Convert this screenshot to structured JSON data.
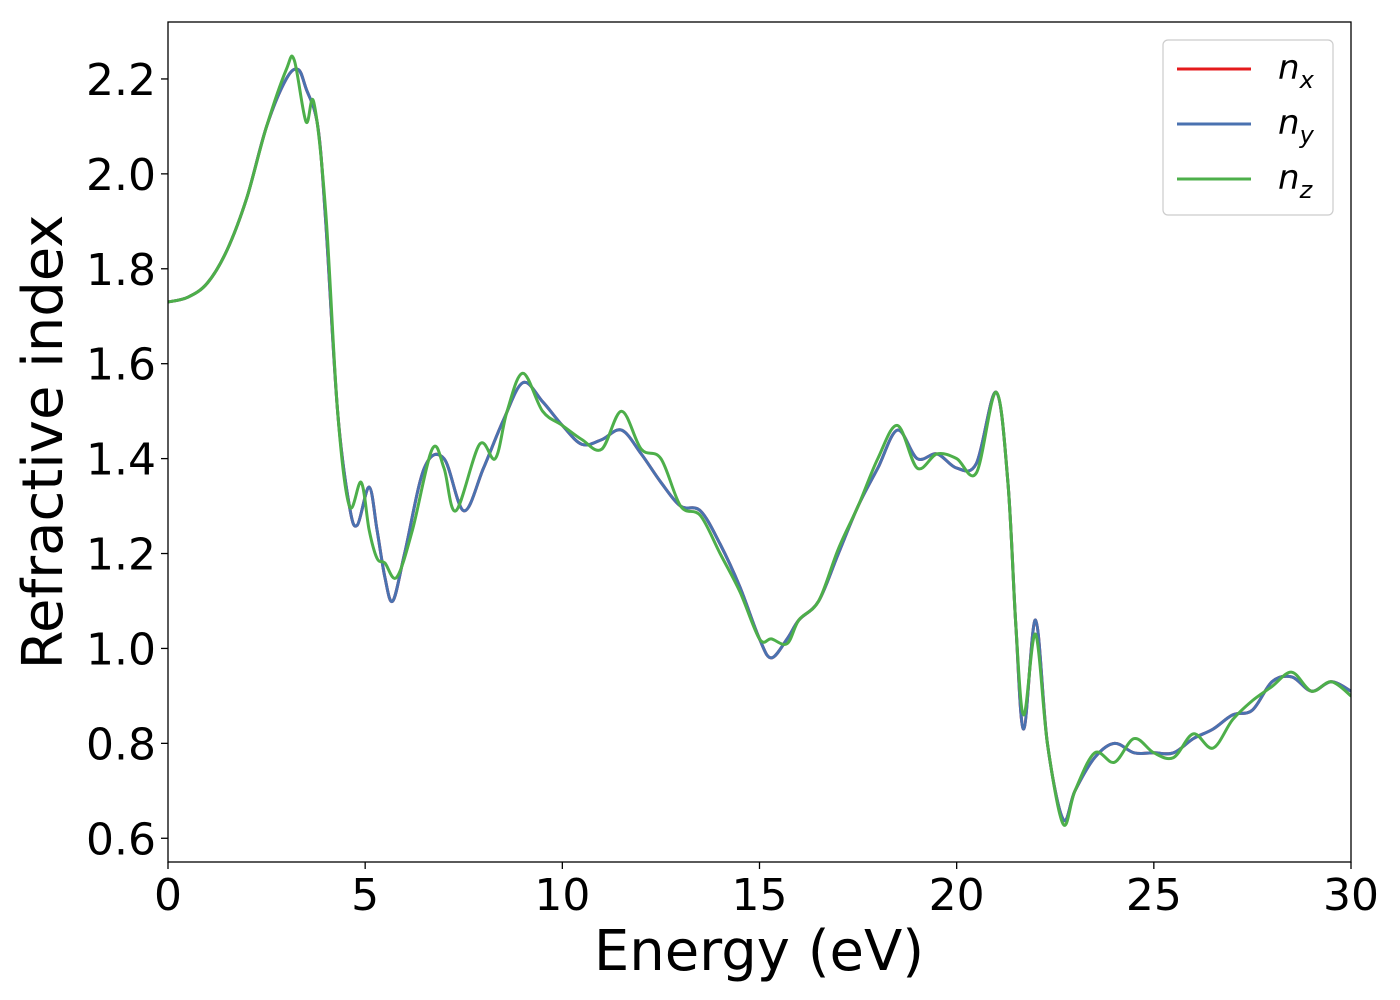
{
  "chart_data": {
    "type": "line",
    "xlabel": "Energy (eV)",
    "ylabel": "Refractive index",
    "xlim": [
      0,
      30
    ],
    "ylim": [
      0.55,
      2.32
    ],
    "xticks": [
      0,
      5,
      10,
      15,
      20,
      25,
      30
    ],
    "xtick_labels": [
      "0",
      "5",
      "10",
      "15",
      "20",
      "25",
      "30"
    ],
    "yticks": [
      0.6,
      0.8,
      1.0,
      1.2,
      1.4,
      1.6,
      1.8,
      2.0,
      2.2
    ],
    "ytick_labels": [
      "0.6",
      "0.8",
      "1.0",
      "1.2",
      "1.4",
      "1.6",
      "1.8",
      "2.0",
      "2.2"
    ],
    "grid": false,
    "legend_position": "top-right",
    "series": [
      {
        "name": "n",
        "subscript": "x",
        "color": "#e41a1c",
        "x": [
          0,
          0.5,
          1,
          1.5,
          2,
          2.5,
          3,
          3.3,
          3.5,
          3.8,
          4.0,
          4.3,
          4.6,
          4.8,
          5.1,
          5.3,
          5.5,
          5.7,
          6.0,
          6.5,
          7.0,
          7.5,
          8.0,
          8.5,
          9.0,
          9.5,
          10.0,
          10.5,
          11.0,
          11.5,
          12.0,
          12.5,
          13.0,
          13.5,
          14.0,
          14.5,
          15.0,
          15.3,
          15.7,
          16.0,
          16.5,
          17.0,
          17.5,
          18.0,
          18.5,
          19.0,
          19.5,
          20.0,
          20.5,
          21.0,
          21.3,
          21.5,
          21.7,
          22.0,
          22.3,
          22.7,
          23.0,
          23.5,
          24.0,
          24.5,
          25.0,
          25.5,
          26.0,
          26.5,
          27.0,
          27.5,
          28.0,
          28.5,
          29.0,
          29.5,
          30.0
        ],
        "y": [
          1.73,
          1.74,
          1.77,
          1.84,
          1.95,
          2.1,
          2.2,
          2.22,
          2.18,
          2.1,
          1.9,
          1.5,
          1.3,
          1.26,
          1.34,
          1.25,
          1.15,
          1.1,
          1.2,
          1.38,
          1.4,
          1.29,
          1.38,
          1.48,
          1.56,
          1.52,
          1.47,
          1.43,
          1.44,
          1.46,
          1.41,
          1.35,
          1.3,
          1.29,
          1.22,
          1.13,
          1.02,
          0.98,
          1.02,
          1.06,
          1.1,
          1.2,
          1.3,
          1.38,
          1.46,
          1.4,
          1.41,
          1.38,
          1.39,
          1.54,
          1.35,
          1.05,
          0.83,
          1.06,
          0.8,
          0.64,
          0.7,
          0.77,
          0.8,
          0.78,
          0.78,
          0.78,
          0.81,
          0.83,
          0.86,
          0.87,
          0.93,
          0.94,
          0.91,
          0.93,
          0.91
        ]
      },
      {
        "name": "n",
        "subscript": "y",
        "color": "#4a72b0",
        "x": [
          0,
          0.5,
          1,
          1.5,
          2,
          2.5,
          3,
          3.3,
          3.5,
          3.8,
          4.0,
          4.3,
          4.6,
          4.8,
          5.1,
          5.3,
          5.5,
          5.7,
          6.0,
          6.5,
          7.0,
          7.5,
          8.0,
          8.5,
          9.0,
          9.5,
          10.0,
          10.5,
          11.0,
          11.5,
          12.0,
          12.5,
          13.0,
          13.5,
          14.0,
          14.5,
          15.0,
          15.3,
          15.7,
          16.0,
          16.5,
          17.0,
          17.5,
          18.0,
          18.5,
          19.0,
          19.5,
          20.0,
          20.5,
          21.0,
          21.3,
          21.5,
          21.7,
          22.0,
          22.3,
          22.7,
          23.0,
          23.5,
          24.0,
          24.5,
          25.0,
          25.5,
          26.0,
          26.5,
          27.0,
          27.5,
          28.0,
          28.5,
          29.0,
          29.5,
          30.0
        ],
        "y": [
          1.73,
          1.74,
          1.77,
          1.84,
          1.95,
          2.1,
          2.2,
          2.22,
          2.18,
          2.1,
          1.9,
          1.5,
          1.3,
          1.26,
          1.34,
          1.25,
          1.15,
          1.1,
          1.2,
          1.38,
          1.4,
          1.29,
          1.38,
          1.48,
          1.56,
          1.52,
          1.47,
          1.43,
          1.44,
          1.46,
          1.41,
          1.35,
          1.3,
          1.29,
          1.22,
          1.13,
          1.02,
          0.98,
          1.02,
          1.06,
          1.1,
          1.2,
          1.3,
          1.38,
          1.46,
          1.4,
          1.41,
          1.38,
          1.39,
          1.54,
          1.35,
          1.05,
          0.83,
          1.06,
          0.8,
          0.64,
          0.7,
          0.77,
          0.8,
          0.78,
          0.78,
          0.78,
          0.81,
          0.83,
          0.86,
          0.87,
          0.93,
          0.94,
          0.91,
          0.93,
          0.91
        ]
      },
      {
        "name": "n",
        "subscript": "z",
        "color": "#4daf4a",
        "x": [
          0,
          0.5,
          1,
          1.5,
          2,
          2.5,
          3,
          3.2,
          3.5,
          3.7,
          4.0,
          4.3,
          4.6,
          4.9,
          5.1,
          5.3,
          5.5,
          5.8,
          6.2,
          6.7,
          7.0,
          7.3,
          7.9,
          8.3,
          8.6,
          9.0,
          9.5,
          10.0,
          10.5,
          11.0,
          11.5,
          12.0,
          12.5,
          13.0,
          13.5,
          14.0,
          14.5,
          15.0,
          15.3,
          15.7,
          16.0,
          16.5,
          17.0,
          17.5,
          18.0,
          18.5,
          19.0,
          19.5,
          20.0,
          20.5,
          21.0,
          21.3,
          21.5,
          21.7,
          22.0,
          22.3,
          22.7,
          23.0,
          23.5,
          24.0,
          24.5,
          25.0,
          25.5,
          26.0,
          26.5,
          27.0,
          27.5,
          28.0,
          28.5,
          29.0,
          29.5,
          30.0
        ],
        "y": [
          1.73,
          1.74,
          1.77,
          1.84,
          1.95,
          2.1,
          2.22,
          2.24,
          2.11,
          2.15,
          1.92,
          1.5,
          1.3,
          1.35,
          1.25,
          1.19,
          1.18,
          1.15,
          1.25,
          1.42,
          1.38,
          1.29,
          1.43,
          1.4,
          1.5,
          1.58,
          1.5,
          1.47,
          1.44,
          1.42,
          1.5,
          1.42,
          1.4,
          1.3,
          1.28,
          1.2,
          1.12,
          1.02,
          1.02,
          1.01,
          1.06,
          1.1,
          1.21,
          1.3,
          1.4,
          1.47,
          1.38,
          1.41,
          1.4,
          1.37,
          1.54,
          1.35,
          1.05,
          0.86,
          1.03,
          0.8,
          0.63,
          0.7,
          0.78,
          0.76,
          0.81,
          0.78,
          0.77,
          0.82,
          0.79,
          0.85,
          0.89,
          0.92,
          0.95,
          0.91,
          0.93,
          0.9
        ]
      }
    ]
  }
}
